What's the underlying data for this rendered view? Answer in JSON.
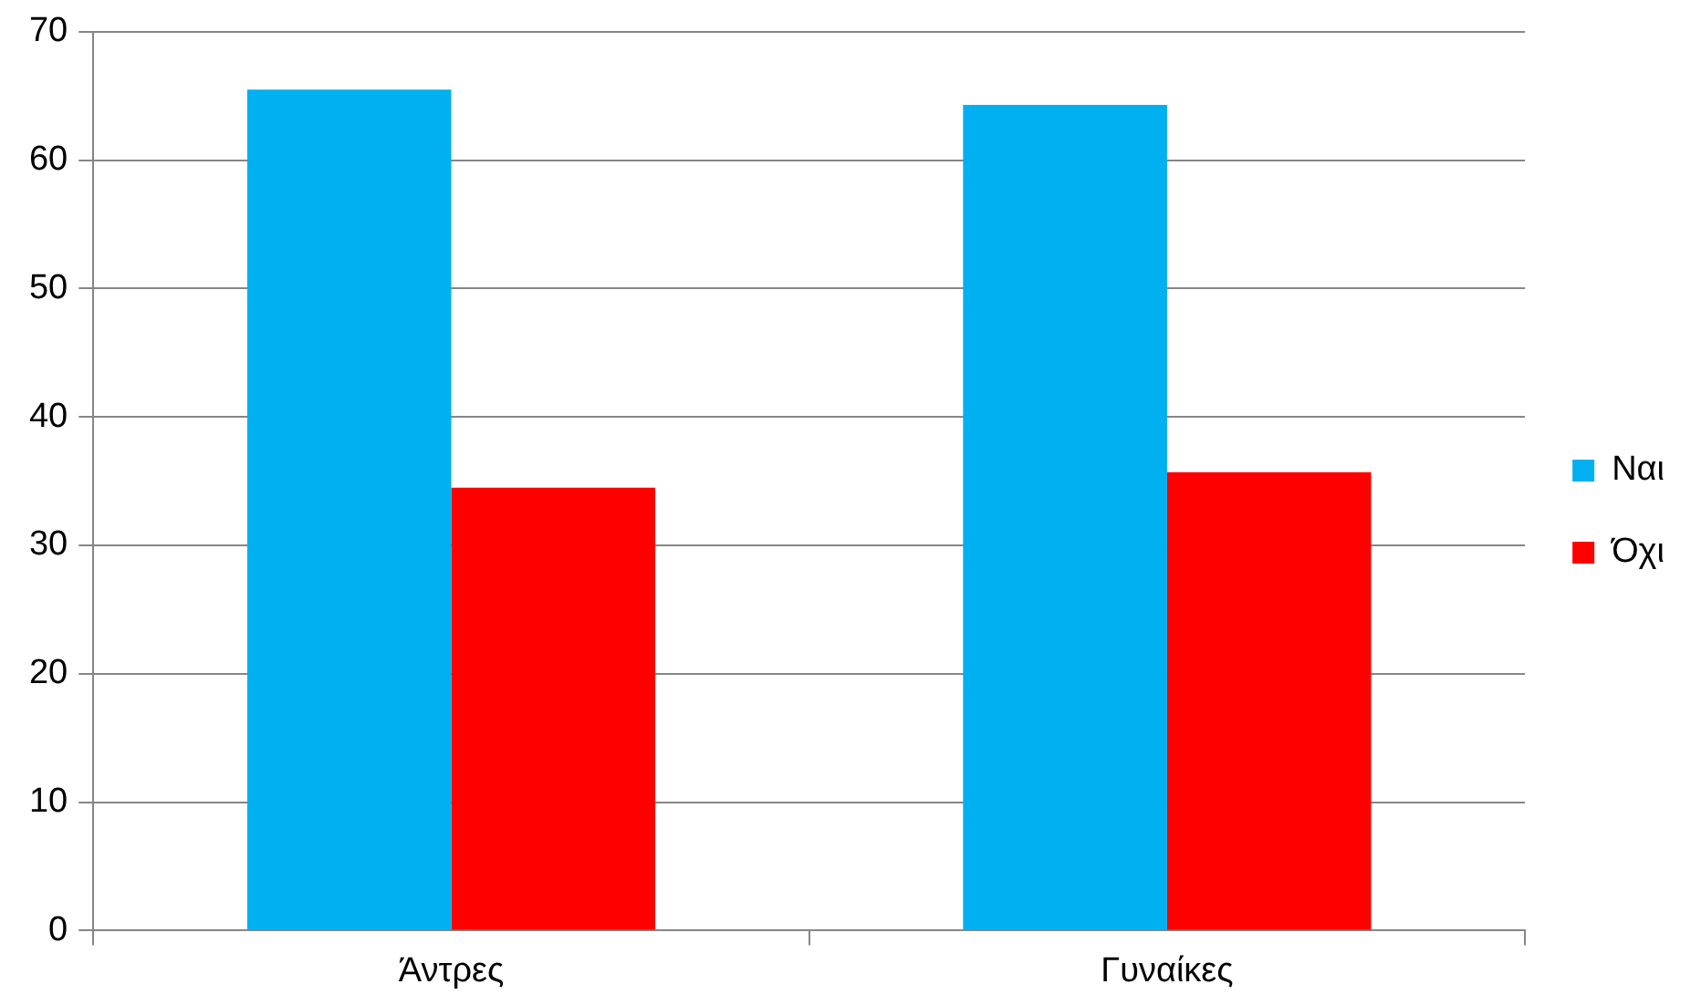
{
  "chart_data": {
    "type": "bar",
    "categories": [
      "Άντρες",
      "Γυναίκες"
    ],
    "series": [
      {
        "name": "Ναι",
        "color": "#00b0f0",
        "values": [
          65.5,
          64.3
        ]
      },
      {
        "name": "Όχι",
        "color": "#ff0000",
        "values": [
          34.5,
          35.7
        ]
      }
    ],
    "ylim": [
      0,
      70
    ],
    "yticks": [
      0,
      10,
      20,
      30,
      40,
      50,
      60,
      70
    ],
    "grid": "y",
    "legend": "right"
  }
}
